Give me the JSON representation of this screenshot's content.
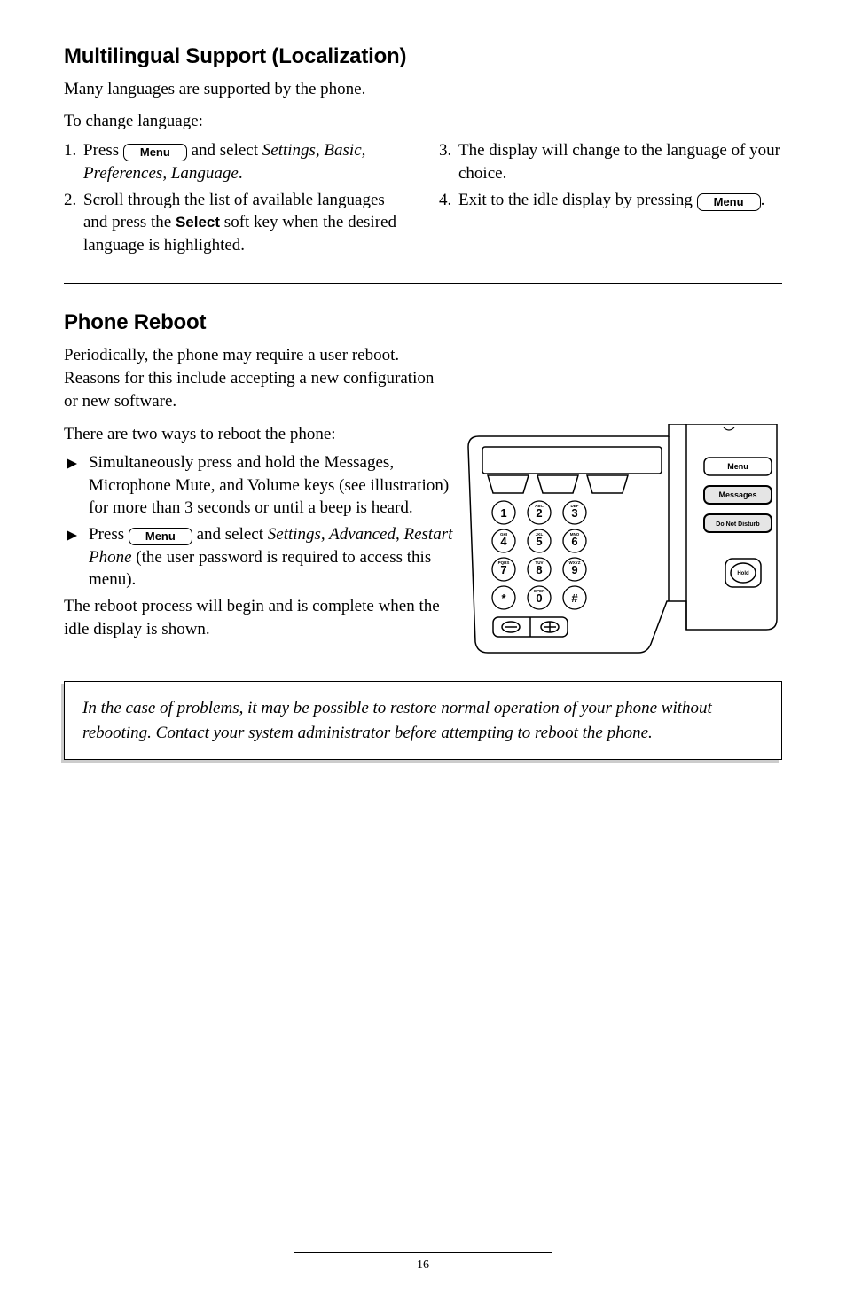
{
  "section1": {
    "title": "Multilingual Support (Localization)",
    "intro1": "Many languages are supported by the phone.",
    "intro2": "To change language:",
    "left": {
      "n1": "1.",
      "s1a": "Press ",
      "s1b": " and select ",
      "s1c": "Settings, Basic, Preferences, Language",
      "s1d": ".",
      "n2": "2.",
      "s2a": "Scroll through the list of available languages and press the ",
      "s2b": "Select",
      "s2c": " soft key when the desired language is highlighted."
    },
    "right": {
      "n3": "3.",
      "s3": "The display will change to the language of your choice.",
      "n4": "4.",
      "s4a": "Exit to the idle display by pressing ",
      "s4b": "."
    },
    "menu_label": "Menu"
  },
  "section2": {
    "title": "Phone Reboot",
    "p1": "Periodically, the phone may require a user reboot.  Reasons for this include accepting a new configuration or new software.",
    "p2": "There are two ways to reboot the phone:",
    "b1": "Simultaneously press and hold the Messages, Microphone Mute, and Volume keys (see illustration) for more than 3 seconds or until a beep is heard.",
    "b2a": "Press ",
    "b2b": " and select ",
    "b2c": "Settings, Advanced, Restart Phone",
    "b2d": " (the user password is required to access this menu).",
    "p3": "The reboot process will begin and is complete when the idle display is shown.",
    "menu_label": "Menu"
  },
  "note": {
    "text": "In the case of problems, it may be possible to restore normal operation of your phone without rebooting.  Contact your system administrator before attempting to reboot the phone."
  },
  "illustration": {
    "keypad_rows": [
      [
        "1",
        "2",
        "3"
      ],
      [
        "4",
        "5",
        "6"
      ],
      [
        "7",
        "8",
        "9"
      ],
      [
        "*",
        "0",
        "#"
      ]
    ],
    "key_superscripts": {
      "2": "ABC",
      "3": "DEF",
      "4": "GHI",
      "5": "JKL",
      "6": "MNO",
      "7": "PQRS",
      "8": "TUV",
      "9": "WXYZ",
      "0": "OPER"
    },
    "side_buttons": [
      "Menu",
      "Messages",
      "Do Not Disturb"
    ],
    "hold_label": "Hold",
    "colors": {
      "stroke": "#000000",
      "bg": "#ffffff",
      "pagefill": "#e5e5e5"
    }
  },
  "page_number": "16"
}
